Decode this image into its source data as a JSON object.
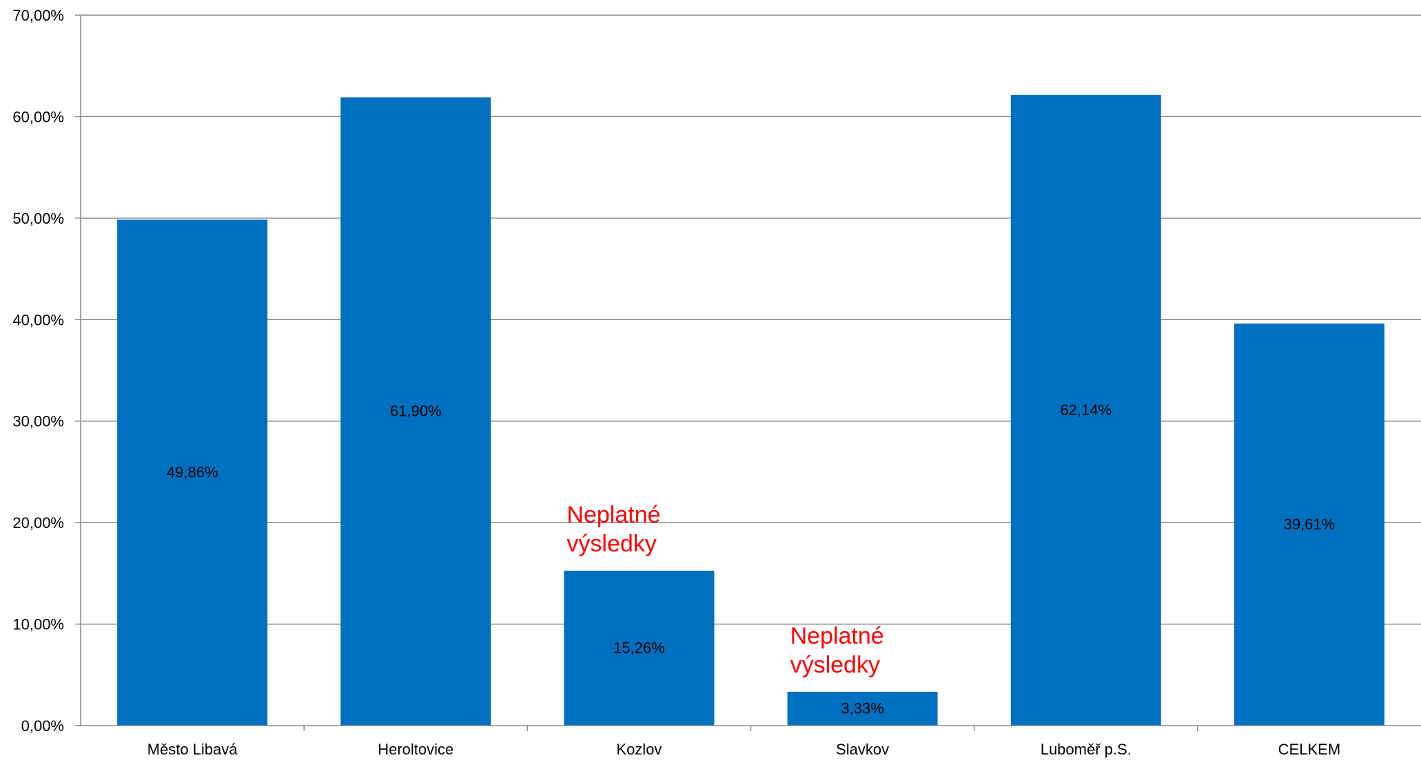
{
  "chart_data": {
    "type": "bar",
    "title": "",
    "xlabel": "",
    "ylabel": "",
    "categories": [
      "Město Libavá",
      "Heroltovice",
      "Kozlov",
      "Slavkov",
      "Luboměř p.S.",
      "CELKEM"
    ],
    "values": [
      49.86,
      61.9,
      15.26,
      3.33,
      62.14,
      39.61
    ],
    "data_labels": [
      "49,86%",
      "61,90%",
      "15,26%",
      "3,33%",
      "62,14%",
      "39,61%"
    ],
    "ylim": [
      0,
      70
    ],
    "yticks": [
      0,
      10,
      20,
      30,
      40,
      50,
      60,
      70
    ],
    "ytick_labels": [
      "0,00%",
      "10,00%",
      "20,00%",
      "30,00%",
      "40,00%",
      "50,00%",
      "60,00%",
      "70,00%"
    ],
    "grid": true,
    "legend": "none",
    "annotations": [
      {
        "category_index": 2,
        "lines": [
          "Neplatné",
          "výsledky"
        ]
      },
      {
        "category_index": 3,
        "lines": [
          "Neplatné",
          "výsledky"
        ]
      }
    ],
    "colors": {
      "bar": "#0070c0",
      "grid": "#888888",
      "axis": "#888888",
      "annotation": "#ff0000"
    }
  }
}
